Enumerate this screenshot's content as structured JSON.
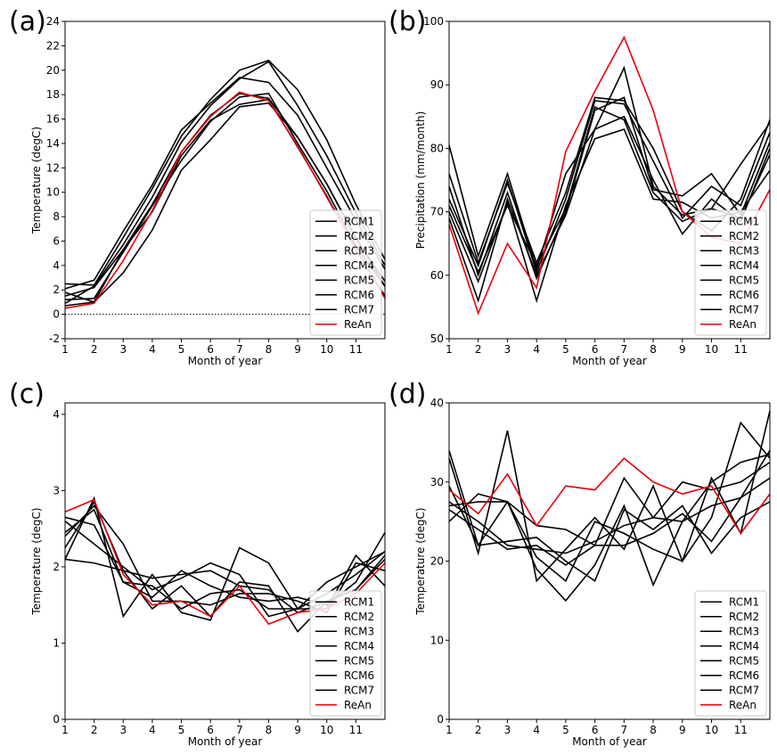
{
  "chart_data": [
    {
      "panel": "(a)",
      "type": "line",
      "xlabel": "Month of year",
      "ylabel": "Temperature (degC)",
      "x": [
        1,
        2,
        3,
        4,
        5,
        6,
        7,
        8,
        9,
        10,
        11,
        12
      ],
      "xticks": [
        "1",
        "2",
        "3",
        "4",
        "5",
        "6",
        "7",
        "8",
        "9",
        "10",
        "11"
      ],
      "xlim": [
        1,
        12
      ],
      "ylim": [
        -2,
        24
      ],
      "yticks": [
        "-2",
        "0",
        "2",
        "4",
        "6",
        "8",
        "10",
        "12",
        "14",
        "16",
        "18",
        "20",
        "22",
        "24"
      ],
      "hline": 0,
      "legend_position": "bottom-right",
      "series": [
        {
          "name": "RCM1",
          "color": "#000000",
          "values": [
            2.5,
            2.4,
            6.3,
            10.3,
            14.6,
            17.6,
            20.0,
            20.8,
            18.4,
            14.3,
            9.0,
            4.5
          ]
        },
        {
          "name": "RCM2",
          "color": "#000000",
          "values": [
            1.5,
            2.2,
            5.3,
            9.0,
            13.3,
            16.3,
            18.1,
            17.7,
            14.5,
            10.7,
            6.3,
            2.3
          ]
        },
        {
          "name": "RCM3",
          "color": "#000000",
          "values": [
            2.1,
            2.8,
            6.8,
            10.6,
            15.1,
            17.3,
            19.4,
            19.0,
            16.3,
            12.0,
            7.7,
            3.7
          ]
        },
        {
          "name": "RCM4",
          "color": "#000000",
          "values": [
            1.2,
            1.3,
            5.1,
            8.9,
            12.6,
            15.8,
            17.8,
            18.1,
            14.0,
            10.1,
            5.6,
            2.3
          ]
        },
        {
          "name": "RCM5",
          "color": "#000000",
          "values": [
            0.7,
            1.0,
            3.4,
            6.9,
            11.8,
            14.3,
            17.0,
            17.3,
            14.5,
            10.7,
            6.2,
            2.7
          ]
        },
        {
          "name": "RCM6",
          "color": "#000000",
          "values": [
            0.9,
            2.3,
            5.7,
            9.6,
            14.1,
            17.1,
            19.3,
            20.7,
            17.1,
            13.0,
            8.3,
            4.0
          ]
        },
        {
          "name": "RCM7",
          "color": "#000000",
          "values": [
            1.8,
            1.0,
            5.3,
            8.4,
            13.0,
            15.9,
            17.2,
            17.6,
            13.7,
            9.7,
            5.3,
            1.5
          ]
        },
        {
          "name": "ReAn",
          "color": "#e8000b",
          "values": [
            0.5,
            0.9,
            4.4,
            8.5,
            13.3,
            16.2,
            18.2,
            17.5,
            13.8,
            9.6,
            5.4,
            1.3
          ]
        }
      ]
    },
    {
      "panel": "(b)",
      "type": "line",
      "xlabel": "Month of year",
      "ylabel": "Precipitation (mm/month)",
      "x": [
        1,
        2,
        3,
        4,
        5,
        6,
        7,
        8,
        9,
        10,
        11,
        12
      ],
      "xticks": [
        "1",
        "2",
        "3",
        "4",
        "5",
        "6",
        "7",
        "8",
        "9",
        "10",
        "11"
      ],
      "xlim": [
        1,
        12
      ],
      "ylim": [
        50,
        100
      ],
      "yticks": [
        "50",
        "60",
        "70",
        "80",
        "90",
        "100"
      ],
      "legend_position": "bottom-right",
      "series": [
        {
          "name": "RCM1",
          "color": "#000000",
          "values": [
            80.5,
            63.0,
            76.0,
            61.0,
            76.0,
            83.0,
            92.7,
            74.0,
            69.5,
            70.5,
            77.5,
            84.0
          ]
        },
        {
          "name": "RCM2",
          "color": "#000000",
          "values": [
            74.0,
            60.0,
            73.0,
            59.5,
            70.0,
            86.0,
            88.0,
            73.5,
            72.5,
            76.0,
            69.5,
            81.0
          ]
        },
        {
          "name": "RCM3",
          "color": "#000000",
          "values": [
            72.0,
            61.5,
            75.0,
            60.5,
            72.0,
            87.5,
            87.0,
            78.0,
            69.0,
            74.0,
            71.0,
            82.5
          ]
        },
        {
          "name": "RCM4",
          "color": "#000000",
          "values": [
            70.0,
            59.0,
            71.5,
            56.0,
            71.0,
            81.5,
            83.0,
            72.0,
            71.5,
            69.0,
            70.0,
            76.5
          ]
        },
        {
          "name": "RCM5",
          "color": "#000000",
          "values": [
            69.0,
            56.0,
            72.0,
            60.0,
            69.5,
            83.0,
            85.0,
            75.0,
            66.5,
            72.0,
            68.5,
            80.0
          ]
        },
        {
          "name": "RCM6",
          "color": "#000000",
          "values": [
            76.0,
            62.0,
            74.5,
            62.0,
            73.0,
            88.0,
            87.5,
            80.0,
            70.0,
            67.0,
            72.0,
            84.5
          ]
        },
        {
          "name": "RCM7",
          "color": "#000000",
          "values": [
            71.0,
            60.5,
            71.0,
            61.5,
            70.5,
            86.5,
            84.5,
            73.0,
            68.5,
            70.5,
            69.0,
            79.0
          ]
        },
        {
          "name": "ReAn",
          "color": "#e8000b",
          "values": [
            68.0,
            54.0,
            65.0,
            58.0,
            79.5,
            89.0,
            97.5,
            86.0,
            70.0,
            66.0,
            65.0,
            73.5
          ]
        }
      ]
    },
    {
      "panel": "(c)",
      "type": "line",
      "xlabel": "Month of year",
      "ylabel": "Temperature (degC)",
      "x": [
        1,
        2,
        3,
        4,
        5,
        6,
        7,
        8,
        9,
        10,
        11,
        12
      ],
      "xticks": [
        "1",
        "2",
        "3",
        "4",
        "5",
        "6",
        "7",
        "8",
        "9",
        "10",
        "11"
      ],
      "xlim": [
        1,
        12
      ],
      "ylim": [
        0,
        4.15
      ],
      "yticks": [
        "0",
        "1",
        "2",
        "3",
        "4"
      ],
      "hline": 0,
      "legend_position": "bottom-right",
      "series": [
        {
          "name": "RCM1",
          "color": "#000000",
          "values": [
            2.65,
            2.55,
            1.8,
            1.75,
            1.45,
            1.65,
            1.7,
            1.45,
            1.45,
            1.65,
            1.9,
            2.2
          ]
        },
        {
          "name": "RCM2",
          "color": "#000000",
          "values": [
            2.1,
            2.9,
            1.35,
            1.9,
            1.4,
            1.3,
            2.25,
            2.05,
            1.45,
            1.45,
            2.15,
            1.75
          ]
        },
        {
          "name": "RCM3",
          "color": "#000000",
          "values": [
            2.45,
            2.75,
            1.8,
            1.6,
            1.95,
            1.75,
            1.6,
            1.55,
            1.6,
            1.5,
            1.8,
            2.45
          ]
        },
        {
          "name": "RCM4",
          "color": "#000000",
          "values": [
            2.1,
            2.05,
            1.95,
            1.85,
            1.9,
            1.95,
            1.75,
            1.7,
            1.4,
            1.55,
            1.7,
            2.1
          ]
        },
        {
          "name": "RCM5",
          "color": "#000000",
          "values": [
            2.6,
            2.3,
            2.0,
            1.7,
            1.85,
            2.05,
            1.9,
            1.35,
            1.45,
            1.8,
            2.0,
            2.2
          ]
        },
        {
          "name": "RCM6",
          "color": "#000000",
          "values": [
            2.25,
            2.85,
            1.95,
            1.45,
            1.75,
            1.35,
            1.8,
            1.75,
            1.15,
            1.55,
            1.7,
            2.15
          ]
        },
        {
          "name": "RCM7",
          "color": "#000000",
          "values": [
            2.4,
            2.8,
            2.3,
            1.55,
            1.55,
            1.5,
            1.65,
            1.65,
            1.55,
            1.4,
            2.05,
            1.95
          ]
        },
        {
          "name": "ReAn",
          "color": "#e8000b",
          "values": [
            2.72,
            2.88,
            1.9,
            1.5,
            1.55,
            1.35,
            1.75,
            1.25,
            1.4,
            1.45,
            1.65,
            2.05
          ]
        }
      ]
    },
    {
      "panel": "(d)",
      "type": "line",
      "xlabel": "Month of year",
      "ylabel": "Temperature (degC)",
      "x": [
        1,
        2,
        3,
        4,
        5,
        6,
        7,
        8,
        9,
        10,
        11,
        12
      ],
      "xticks": [
        "1",
        "2",
        "3",
        "4",
        "5",
        "6",
        "7",
        "8",
        "9",
        "10",
        "11"
      ],
      "xlim": [
        1,
        12
      ],
      "ylim": [
        0,
        40
      ],
      "yticks": [
        "0",
        "10",
        "20",
        "30",
        "40"
      ],
      "hline": 0,
      "legend_position": "bottom-right",
      "series": [
        {
          "name": "RCM1",
          "color": "#000000",
          "values": [
            33.0,
            21.0,
            36.5,
            17.5,
            21.5,
            25.5,
            21.5,
            29.5,
            20.0,
            30.5,
            23.5,
            39.0
          ]
        },
        {
          "name": "RCM2",
          "color": "#000000",
          "values": [
            27.0,
            27.5,
            27.5,
            24.5,
            24.0,
            22.0,
            30.5,
            25.5,
            30.0,
            29.0,
            30.0,
            32.5
          ]
        },
        {
          "name": "RCM3",
          "color": "#000000",
          "values": [
            25.0,
            28.5,
            27.5,
            20.5,
            17.5,
            25.0,
            23.5,
            21.5,
            20.0,
            25.5,
            37.5,
            33.0
          ]
        },
        {
          "name": "RCM4",
          "color": "#000000",
          "values": [
            34.0,
            22.0,
            27.5,
            19.0,
            15.0,
            19.5,
            27.0,
            17.0,
            25.0,
            27.0,
            28.0,
            34.0
          ]
        },
        {
          "name": "RCM5",
          "color": "#000000",
          "values": [
            27.5,
            25.0,
            22.0,
            21.5,
            21.0,
            22.5,
            24.5,
            25.5,
            25.0,
            30.0,
            32.5,
            33.5
          ]
        },
        {
          "name": "RCM6",
          "color": "#000000",
          "values": [
            26.5,
            24.0,
            21.5,
            22.0,
            19.5,
            22.0,
            22.0,
            23.5,
            26.0,
            22.5,
            28.0,
            30.5
          ]
        },
        {
          "name": "RCM7",
          "color": "#000000",
          "values": [
            29.5,
            22.0,
            22.5,
            23.0,
            20.0,
            17.5,
            26.5,
            24.0,
            27.0,
            21.0,
            25.5,
            27.5
          ]
        },
        {
          "name": "ReAn",
          "color": "#e8000b",
          "values": [
            29.0,
            26.0,
            31.0,
            24.5,
            29.5,
            29.0,
            33.0,
            30.0,
            28.5,
            29.5,
            23.5,
            28.5
          ]
        }
      ]
    }
  ]
}
